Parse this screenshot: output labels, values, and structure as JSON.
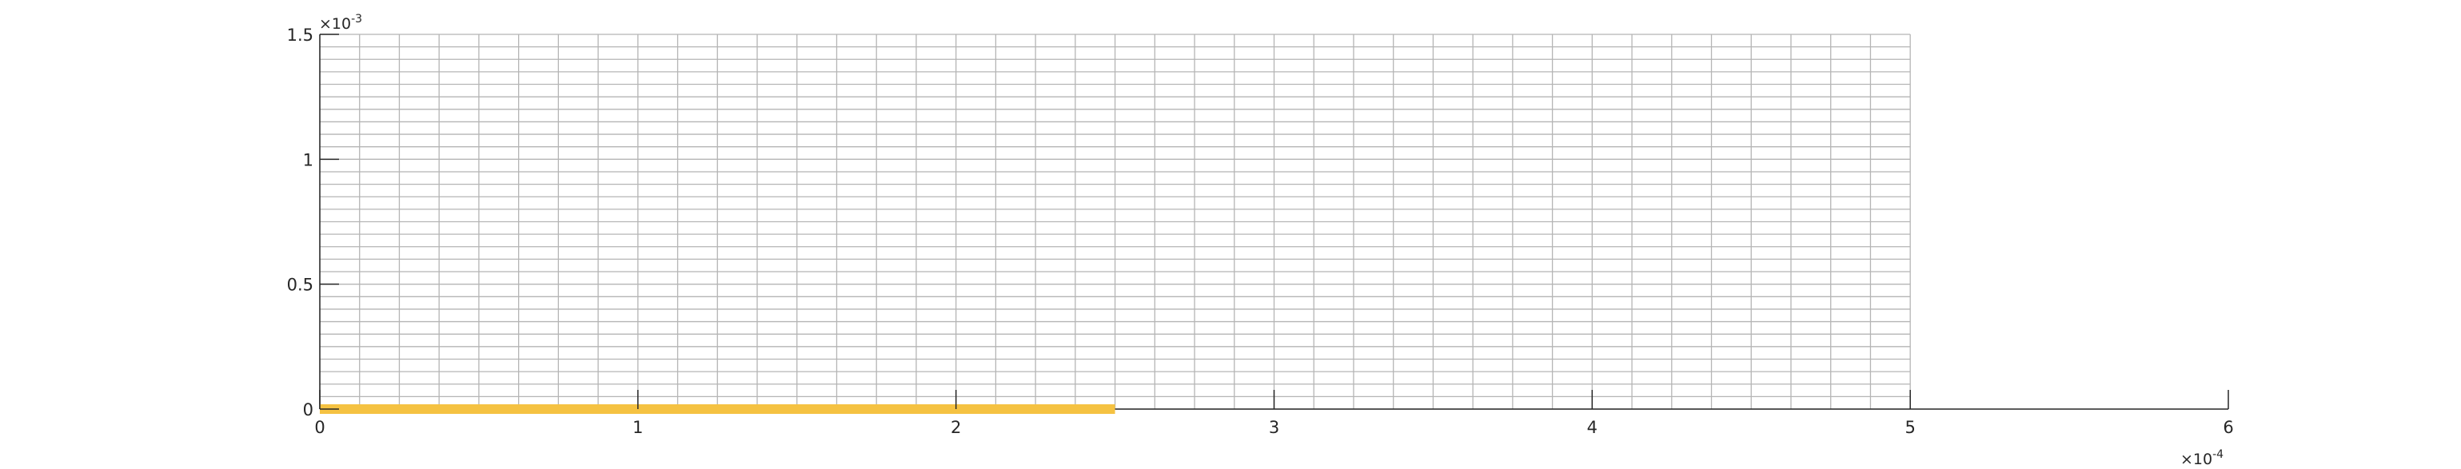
{
  "chart_data": {
    "type": "line",
    "title": "",
    "xlabel": "",
    "ylabel": "",
    "xlim": [
      0,
      0.0006
    ],
    "ylim": [
      0,
      0.0015
    ],
    "x_ticks": [
      0,
      0.0001,
      0.0002,
      0.0003,
      0.0004,
      0.0005,
      0.0006
    ],
    "x_tick_labels": [
      "0",
      "1",
      "2",
      "3",
      "4",
      "5",
      "6"
    ],
    "x_exponent_label": "×10",
    "x_exponent": "-4",
    "y_ticks": [
      0,
      0.0005,
      0.001,
      0.0015
    ],
    "y_tick_labels": [
      "0",
      "0.5",
      "1",
      "1.5"
    ],
    "y_exponent_label": "×10",
    "y_exponent": "-3",
    "grid": {
      "on": true,
      "x_extent": [
        0,
        0.0005
      ],
      "y_extent": [
        0,
        0.0015
      ],
      "x_spacing": 1.25e-05,
      "y_spacing": 5e-05,
      "color": "#b5b5b5"
    },
    "axis_color": "#262626",
    "series": [
      {
        "x": [
          0,
          0.00025
        ],
        "y": [
          0,
          0
        ],
        "color": "#f5c242"
      }
    ]
  }
}
